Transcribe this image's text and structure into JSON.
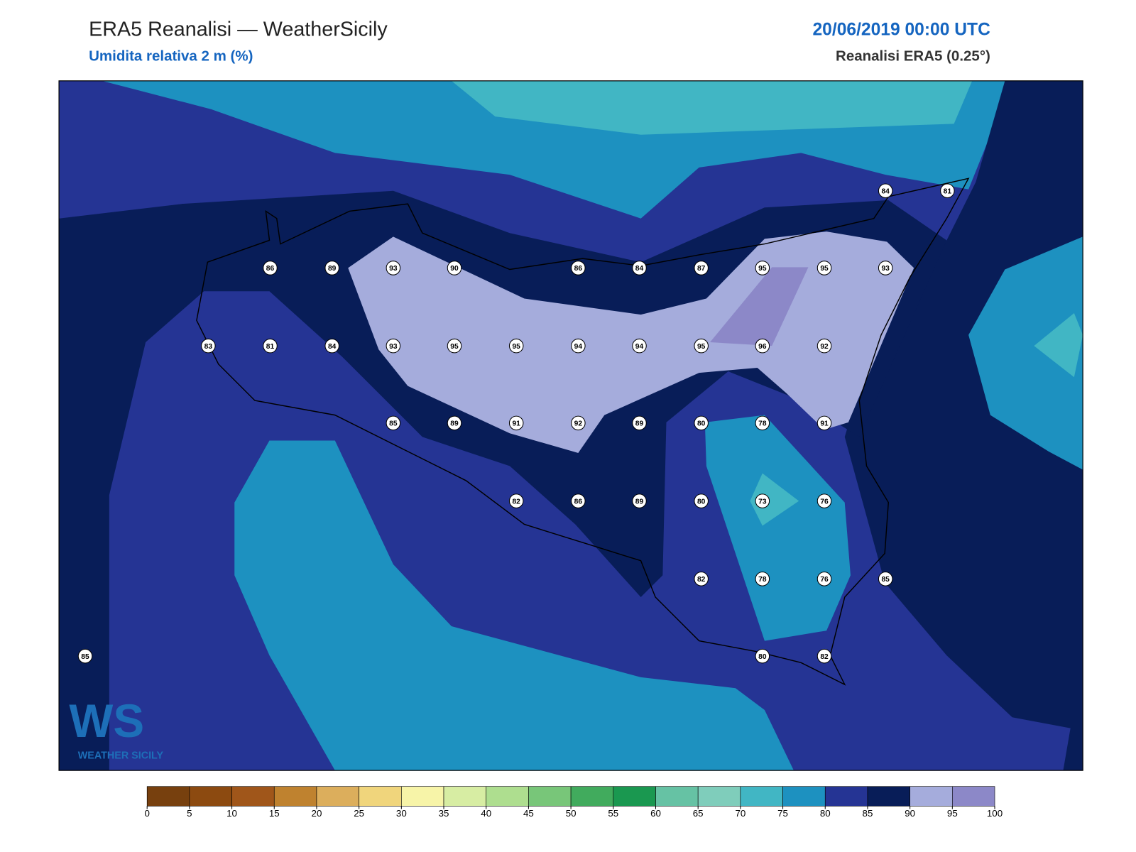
{
  "header": {
    "title": "ERA5 Reanalisi — WeatherSicily",
    "subtitle": "Umidita relativa 2 m (%)",
    "date": "20/06/2019 00:00 UTC",
    "source": "Reanalisi ERA5 (0.25°)"
  },
  "logo": {
    "mark": "WS",
    "name": "WEATHER SICILY"
  },
  "stations": [
    86,
    89,
    93,
    90,
    86,
    84,
    87,
    95,
    95,
    93,
    84,
    81,
    83,
    81,
    84,
    93,
    95,
    95,
    94,
    94,
    95,
    96,
    92,
    85,
    89,
    91,
    92,
    89,
    80,
    78,
    91,
    82,
    86,
    89,
    80,
    73,
    76,
    82,
    78,
    76,
    85,
    80,
    82,
    85
  ],
  "colorbar": {
    "levels": [
      0,
      5,
      10,
      15,
      20,
      25,
      30,
      35,
      40,
      45,
      50,
      55,
      60,
      65,
      70,
      75,
      80,
      85,
      90,
      95,
      100
    ],
    "colors": [
      "#77400e",
      "#8c4a10",
      "#a0561a",
      "#bf822f",
      "#dcae5c",
      "#f0d57c",
      "#f7f4a8",
      "#d7eda3",
      "#aede8f",
      "#78c679",
      "#41ab5d",
      "#1a9850",
      "#66c2a4",
      "#7fcdbb",
      "#41b6c4",
      "#1d91c0",
      "#253494",
      "#081d58",
      "#a5acdc",
      "#8c88c8"
    ]
  }
}
